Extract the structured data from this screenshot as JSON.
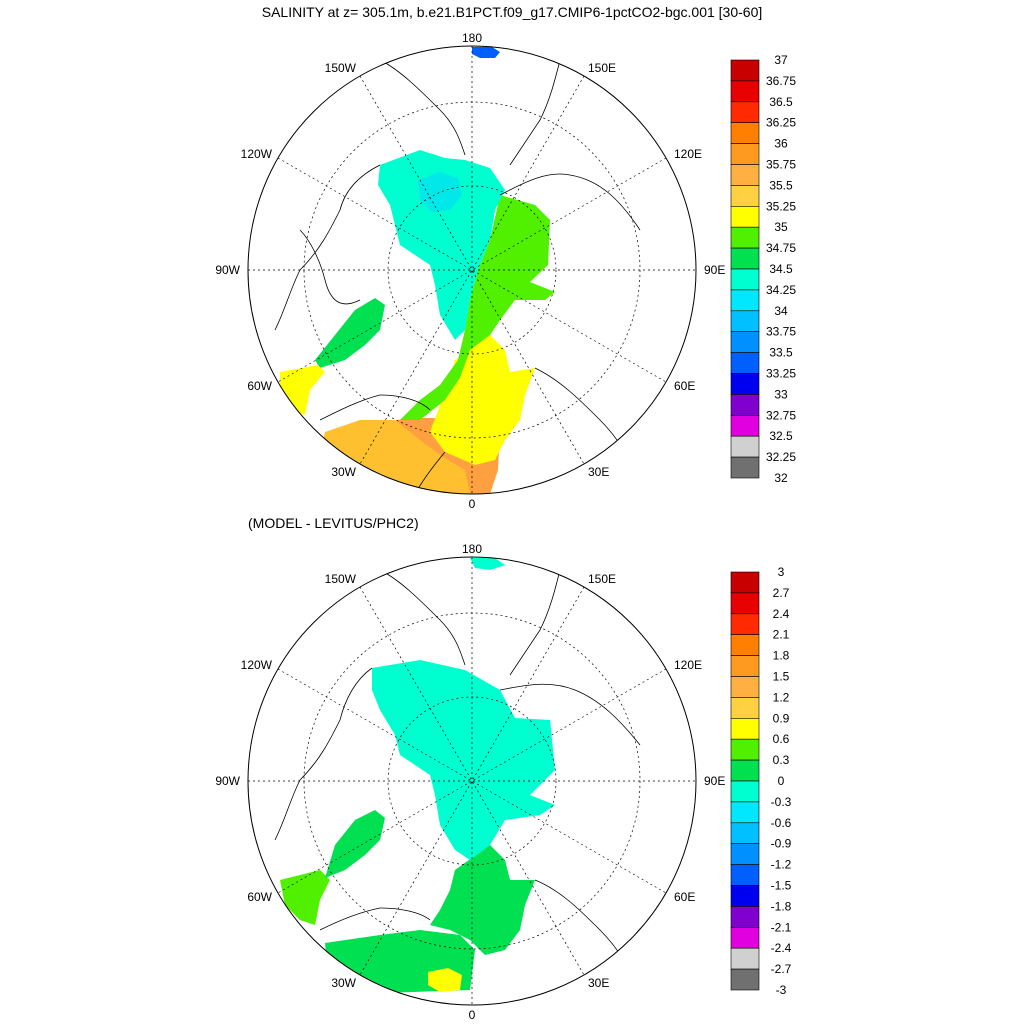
{
  "panels": [
    {
      "id": "top",
      "title": "SALINITY at z= 305.1m, b.e21.B1PCT.f09_g17.CMIP6-1pctCO2-bgc.001 [30-60]",
      "lon_labels": {
        "top": "180",
        "bottom": "0",
        "left": "90W",
        "right": "90E",
        "upper_left": "150W",
        "upper_right": "150E",
        "mid_left_upper": "120W",
        "mid_right_upper": "120E",
        "mid_left_lower": "60W",
        "mid_right_lower": "60E",
        "lower_left": "30W",
        "lower_right": "30E"
      },
      "colorbar": {
        "labels": [
          "37",
          "36.75",
          "36.5",
          "36.25",
          "36",
          "35.75",
          "35.5",
          "35.25",
          "35",
          "34.75",
          "34.5",
          "34.25",
          "34",
          "33.75",
          "33.5",
          "33.25",
          "33",
          "32.75",
          "32.5",
          "32.25",
          "32"
        ],
        "colors": [
          "#c80000",
          "#e80000",
          "#ff2a00",
          "#ff8000",
          "#ff9a20",
          "#ffb040",
          "#ffd040",
          "#ffff00",
          "#50f000",
          "#00e050",
          "#00ffd0",
          "#00e8ff",
          "#00c0ff",
          "#0090ff",
          "#0060ff",
          "#0000f0",
          "#8000d0",
          "#e000e0",
          "#d0d0d0",
          "#707070"
        ]
      },
      "regions": {
        "arctic_basin_color": "#00ffd0",
        "central_low_color": "#00e8e8",
        "eurasian_color": "#50f000",
        "atlantic_inflow_color": "#ffff00",
        "nordic_color": "#ffc030",
        "atlantic_south_color": "#ffa040",
        "baffin_color": "#00e050",
        "labrador_color": "#ffff00",
        "bering_color": "#0060ff"
      }
    },
    {
      "id": "bottom",
      "title": "(MODEL - LEVITUS/PHC2)",
      "lon_labels": {
        "top": "180",
        "bottom": "0",
        "left": "90W",
        "right": "90E",
        "upper_left": "150W",
        "upper_right": "150E",
        "mid_left_upper": "120W",
        "mid_right_upper": "120E",
        "mid_left_lower": "60W",
        "mid_right_lower": "60E",
        "lower_left": "30W",
        "lower_right": "30E"
      },
      "colorbar": {
        "labels": [
          "3",
          "2.7",
          "2.4",
          "2.1",
          "1.8",
          "1.5",
          "1.2",
          "0.9",
          "0.6",
          "0.3",
          "0",
          "-0.3",
          "-0.6",
          "-0.9",
          "-1.2",
          "-1.5",
          "-1.8",
          "-2.1",
          "-2.4",
          "-2.7",
          "-3"
        ],
        "colors": [
          "#c80000",
          "#e80000",
          "#ff2a00",
          "#ff8000",
          "#ff9a20",
          "#ffb040",
          "#ffd040",
          "#ffff00",
          "#50f000",
          "#00e050",
          "#00ffd0",
          "#00e8ff",
          "#00c0ff",
          "#0090ff",
          "#0060ff",
          "#0000f0",
          "#8000d0",
          "#e000e0",
          "#d0d0d0",
          "#707070"
        ]
      },
      "regions": {
        "arctic_basin_color": "#00ffd0",
        "central_low_color": "#00ffd0",
        "eurasian_color": "#00ffd0",
        "atlantic_inflow_color": "#00e050",
        "nordic_color": "#00e050",
        "atlantic_south_color": "#00e050",
        "baffin_color": "#00e050",
        "labrador_color": "#50f000",
        "bering_color": "#00ffd0",
        "hotspot_color": "#ffff00"
      }
    }
  ]
}
